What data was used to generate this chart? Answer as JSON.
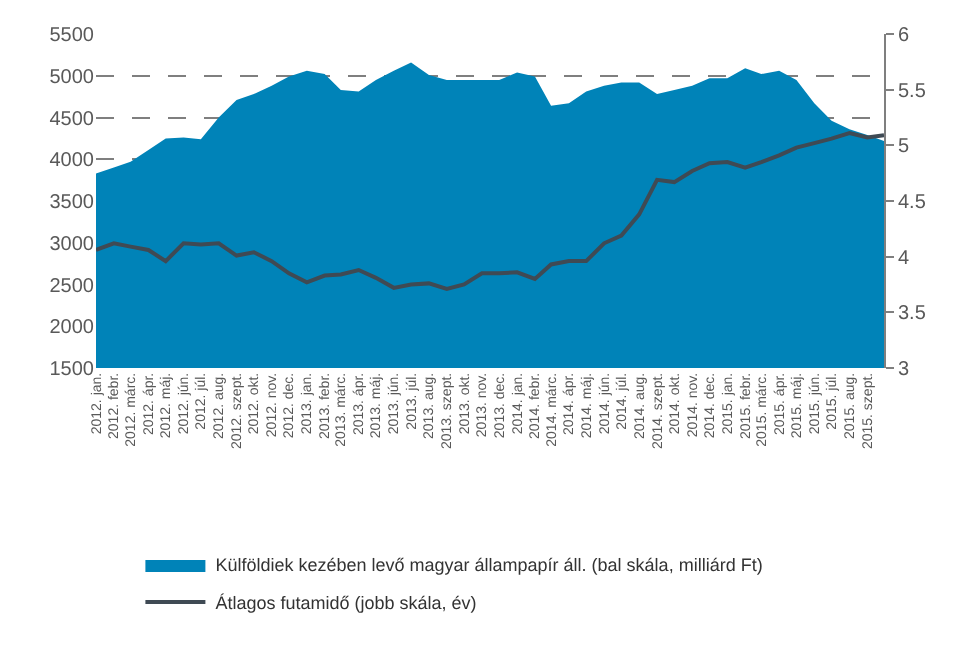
{
  "chart_data": {
    "type": "area",
    "x": [
      "2012-01",
      "2012-02",
      "2012-03",
      "2012-04",
      "2012-05",
      "2012-06",
      "2012-07",
      "2012-08",
      "2012-09",
      "2012-10",
      "2012-11",
      "2012-12",
      "2013-01",
      "2013-02",
      "2013-03",
      "2013-04",
      "2013-05",
      "2013-06",
      "2013-07",
      "2013-08",
      "2013-09",
      "2013-10",
      "2013-11",
      "2013-12",
      "2014-01",
      "2014-02",
      "2014-03",
      "2014-04",
      "2014-05",
      "2014-06",
      "2014-07",
      "2014-08",
      "2014-09",
      "2014-10",
      "2014-11",
      "2014-12",
      "2015-01",
      "2015-02",
      "2015-03",
      "2015-04",
      "2015-05",
      "2015-06",
      "2015-07",
      "2015-08",
      "2015-09",
      "2015-09-30"
    ],
    "series": [
      {
        "name": "Külföldiek kezében levő magyar állampapír áll. (bal skála, milliárd Ft)",
        "color": "#0083b8",
        "values": [
          3830,
          3900,
          3970,
          4110,
          4250,
          4260,
          4240,
          4500,
          4710,
          4780,
          4880,
          4990,
          5060,
          5020,
          4830,
          4810,
          4950,
          5060,
          5160,
          5010,
          4950,
          4950,
          4950,
          4950,
          5040,
          4990,
          4640,
          4670,
          4810,
          4880,
          4920,
          4920,
          4780,
          4830,
          4880,
          4970,
          4970,
          5090,
          5020,
          5060,
          4950,
          4670,
          4460,
          4360,
          4290,
          4220
        ]
      },
      {
        "name": "Átlagos futamidő (jobb skála, év)",
        "type": "line",
        "axis": "y2",
        "color": "#3f4a54",
        "values": [
          4.06,
          4.12,
          4.09,
          4.06,
          3.96,
          4.12,
          4.11,
          4.12,
          4.01,
          4.04,
          3.96,
          3.85,
          3.77,
          3.83,
          3.84,
          3.88,
          3.81,
          3.72,
          3.75,
          3.76,
          3.71,
          3.75,
          3.85,
          3.85,
          3.86,
          3.8,
          3.93,
          3.96,
          3.96,
          4.12,
          4.19,
          4.38,
          4.69,
          4.67,
          4.77,
          4.84,
          4.85,
          4.8,
          4.85,
          4.91,
          4.98,
          5.02,
          5.06,
          5.11,
          5.07,
          5.09
        ]
      }
    ],
    "xticks": [
      {
        "value": "2012-01",
        "label": "2012. jan."
      },
      {
        "value": "2012-02",
        "label": "2012. febr."
      },
      {
        "value": "2012-03",
        "label": "2012. márc."
      },
      {
        "value": "2012-04",
        "label": "2012. ápr."
      },
      {
        "value": "2012-05",
        "label": "2012. máj."
      },
      {
        "value": "2012-06",
        "label": "2012. jún."
      },
      {
        "value": "2012-07",
        "label": "2012. júl."
      },
      {
        "value": "2012-08",
        "label": "2012. aug."
      },
      {
        "value": "2012-09",
        "label": "2012. szept."
      },
      {
        "value": "2012-10",
        "label": "2012. okt."
      },
      {
        "value": "2012-11",
        "label": "2012. nov."
      },
      {
        "value": "2012-12",
        "label": "2012. dec."
      },
      {
        "value": "2013-01",
        "label": "2013. jan."
      },
      {
        "value": "2013-02",
        "label": "2013. febr."
      },
      {
        "value": "2013-03",
        "label": "2013. márc."
      },
      {
        "value": "2013-04",
        "label": "2013. ápr."
      },
      {
        "value": "2013-05",
        "label": "2013. máj."
      },
      {
        "value": "2013-06",
        "label": "2013. jún."
      },
      {
        "value": "2013-07",
        "label": "2013. júl."
      },
      {
        "value": "2013-08",
        "label": "2013. aug."
      },
      {
        "value": "2013-09",
        "label": "2013. szept."
      },
      {
        "value": "2013-10",
        "label": "2013. okt."
      },
      {
        "value": "2013-11",
        "label": "2013. nov."
      },
      {
        "value": "2013-12",
        "label": "2013. dec."
      },
      {
        "value": "2014-01",
        "label": "2014. jan."
      },
      {
        "value": "2014-02",
        "label": "2014. febr."
      },
      {
        "value": "2014-03",
        "label": "2014. márc."
      },
      {
        "value": "2014-04",
        "label": "2014. ápr."
      },
      {
        "value": "2014-05",
        "label": "2014. máj."
      },
      {
        "value": "2014-06",
        "label": "2014. jún."
      },
      {
        "value": "2014-07",
        "label": "2014. júl."
      },
      {
        "value": "2014-08",
        "label": "2014. aug."
      },
      {
        "value": "2014-09",
        "label": "2014. szept."
      },
      {
        "value": "2014-10",
        "label": "2014. okt."
      },
      {
        "value": "2014-11",
        "label": "2014. nov."
      },
      {
        "value": "2014-12",
        "label": "2014. dec."
      },
      {
        "value": "2015-01",
        "label": "2015. jan."
      },
      {
        "value": "2015-02",
        "label": "2015. febr."
      },
      {
        "value": "2015-03",
        "label": "2015. márc."
      },
      {
        "value": "2015-04",
        "label": "2015. ápr."
      },
      {
        "value": "2015-05",
        "label": "2015. máj."
      },
      {
        "value": "2015-06",
        "label": "2015. jún."
      },
      {
        "value": "2015-07",
        "label": "2015. júl."
      },
      {
        "value": "2015-08",
        "label": "2015. aug."
      },
      {
        "value": "2015-09",
        "label": "2015. szept."
      }
    ],
    "xlim": [
      "2012-01",
      "2015-09-30"
    ],
    "ylim": [
      1500,
      5500
    ],
    "yticks": [
      1500,
      2000,
      2500,
      3000,
      3500,
      4000,
      4500,
      5000,
      5500
    ],
    "y2lim": [
      3,
      6
    ],
    "y2ticks": [
      3,
      3.5,
      4,
      4.5,
      5,
      5.5,
      6
    ],
    "grid": "y",
    "legend": "bottom",
    "line_style": "solid",
    "marker": "none"
  }
}
